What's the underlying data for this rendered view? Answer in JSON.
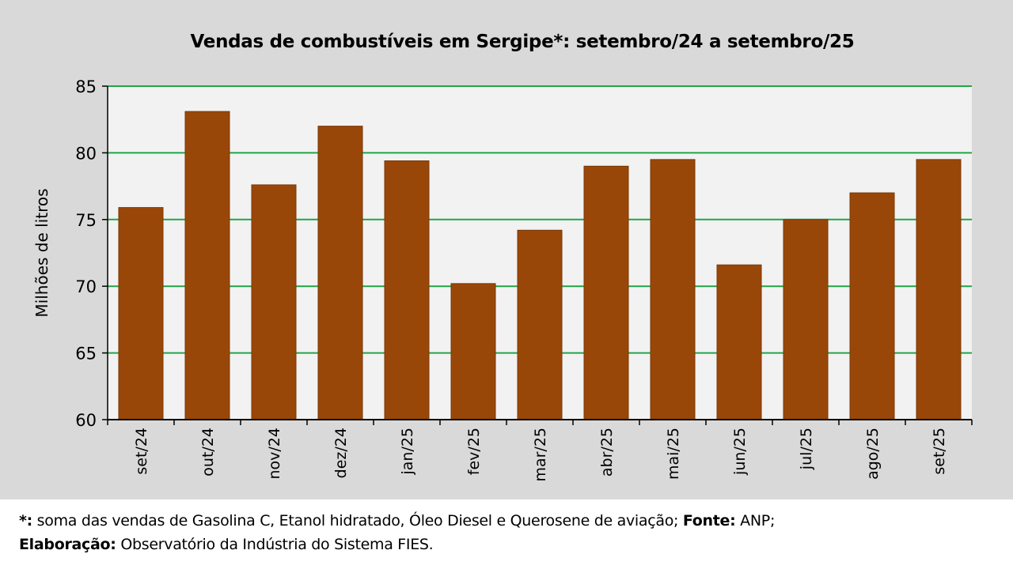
{
  "chart_data": {
    "type": "bar",
    "title": "Vendas de combustíveis em Sergipe*: setembro/24 a setembro/25",
    "xlabel": "",
    "ylabel": "Milhões de litros",
    "ylim": [
      60,
      85
    ],
    "yticks": [
      60,
      65,
      70,
      75,
      80,
      85
    ],
    "grid": true,
    "legend": "none",
    "categories": [
      "set/24",
      "out/24",
      "nov/24",
      "dez/24",
      "jan/25",
      "fev/25",
      "mar/25",
      "abr/25",
      "mai/25",
      "jun/25",
      "jul/25",
      "ago/25",
      "set/25"
    ],
    "series": [
      {
        "name": "Vendas de combustíveis",
        "values": [
          75.9,
          83.1,
          77.6,
          82.0,
          79.4,
          70.2,
          74.2,
          79.0,
          79.5,
          71.6,
          75.0,
          77.0,
          79.5
        ]
      }
    ],
    "colors": {
      "bar": "#994708",
      "grid": "#21a548",
      "plot_bg": "#f2f2f2",
      "frame_bg": "#d9d9d9",
      "axis": "#000000"
    }
  },
  "footnote": {
    "marker": "*:",
    "text1": " soma das vendas de Gasolina C, Etanol hidratado, Óleo Diesel e Querosene de aviação; ",
    "source_label": "Fonte:",
    "source_value": " ANP;",
    "prepared_label": "Elaboração:",
    "prepared_value": " Observatório da Indústria do Sistema FIES."
  }
}
